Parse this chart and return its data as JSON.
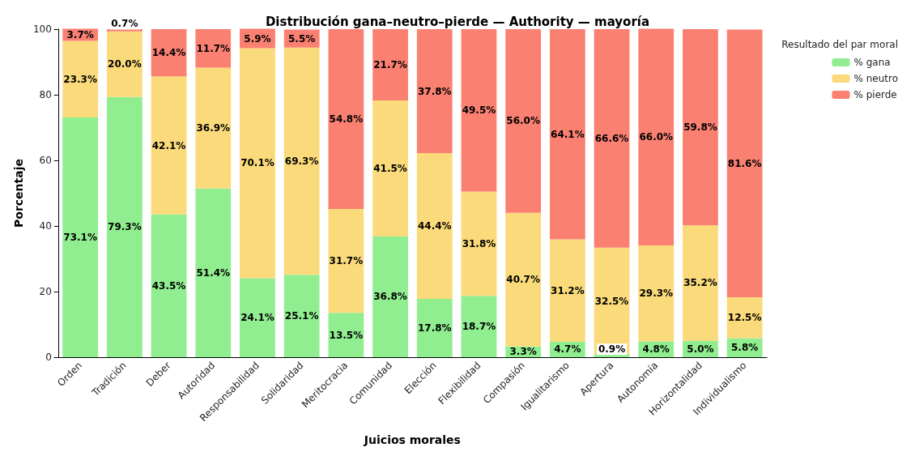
{
  "chart_data": {
    "type": "bar",
    "stacked": true,
    "title": "Distribución gana–neutro–pierde — Authority — mayoría",
    "xlabel": "Juicios morales",
    "ylabel": "Porcentaje",
    "legend_title": "Resultado del par moral",
    "legend": "top right",
    "grid": false,
    "categories": [
      "Orden",
      "Tradición",
      "Deber",
      "Autoridad",
      "Responsabilidad",
      "Solidaridad",
      "Meritocracia",
      "Comunidad",
      "Elección",
      "Flexibilidad",
      "Compasión",
      "Igualitarismo",
      "Apertura",
      "Autonomía",
      "Horizontalidad",
      "Individualismo"
    ],
    "ylim": [
      0,
      100
    ],
    "yticks": [
      0,
      20,
      40,
      60,
      80,
      100
    ],
    "series": [
      {
        "name": "% gana",
        "color": "#90ee90",
        "values": [
          73.1,
          79.3,
          43.5,
          51.4,
          24.1,
          25.1,
          13.5,
          36.8,
          17.8,
          18.7,
          3.3,
          4.7,
          0.9,
          4.8,
          5.0,
          5.8
        ],
        "value_labels": [
          "73.1%",
          "79.3%",
          "43.5%",
          "51.4%",
          "24.1%",
          "25.1%",
          "13.5%",
          "36.8%",
          "17.8%",
          "18.7%",
          "3.3%",
          "4.7%",
          "0.9%",
          "4.8%",
          "5.0%",
          "5.8%"
        ]
      },
      {
        "name": "% neutro",
        "color": "#fada7a",
        "values": [
          23.3,
          20.0,
          42.1,
          36.9,
          70.1,
          69.3,
          31.7,
          41.5,
          44.4,
          31.8,
          40.7,
          31.2,
          32.5,
          29.3,
          35.2,
          12.5
        ],
        "value_labels": [
          "23.3%",
          "20.0%",
          "42.1%",
          "36.9%",
          "70.1%",
          "69.3%",
          "31.7%",
          "41.5%",
          "44.4%",
          "31.8%",
          "40.7%",
          "31.2%",
          "32.5%",
          "29.3%",
          "35.2%",
          "12.5%"
        ]
      },
      {
        "name": "% pierde",
        "color": "#fa8072",
        "values": [
          3.7,
          0.7,
          14.4,
          11.7,
          5.9,
          5.5,
          54.8,
          21.7,
          37.8,
          49.5,
          56.0,
          64.1,
          66.6,
          66.0,
          59.8,
          81.6
        ],
        "value_labels": [
          "3.7%",
          "0.7%",
          "14.4%",
          "11.7%",
          "5.9%",
          "5.5%",
          "54.8%",
          "21.7%",
          "37.8%",
          "49.5%",
          "56.0%",
          "64.1%",
          "66.6%",
          "66.0%",
          "59.8%",
          "81.6%"
        ]
      }
    ]
  }
}
